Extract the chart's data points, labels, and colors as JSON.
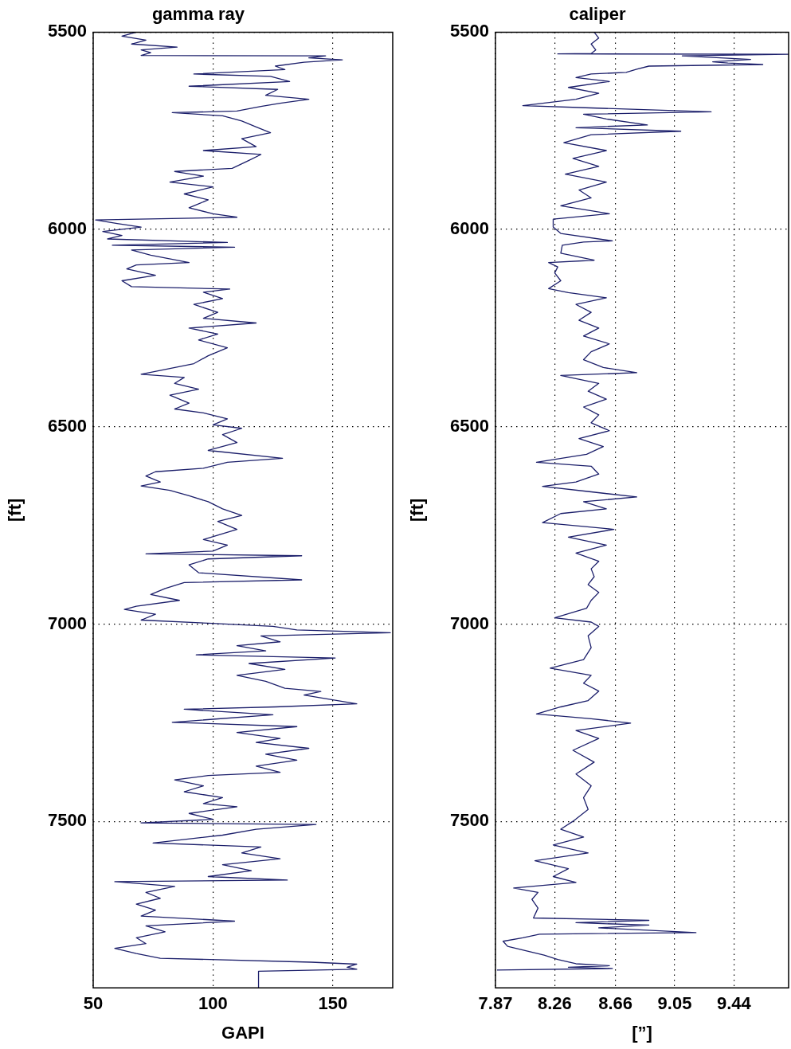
{
  "chart_data": [
    {
      "type": "line",
      "title": "gamma ray",
      "xlabel": "GAPI",
      "ylabel": "[ft]",
      "orientation": "horizontal",
      "grid": true,
      "xlim": [
        50,
        175
      ],
      "xticks": [
        50,
        100,
        150
      ],
      "ylim": [
        7922,
        5500
      ],
      "yticks": [
        5500,
        6000,
        6500,
        7000,
        7500
      ],
      "x": [
        5500,
        5510,
        5520,
        5530,
        5538,
        5545,
        5552,
        5559,
        5560,
        5565,
        5570,
        5576,
        5586,
        5595,
        5606,
        5612,
        5625,
        5637,
        5645,
        5660,
        5670,
        5680,
        5688,
        5700,
        5704,
        5712,
        5725,
        5740,
        5755,
        5770,
        5790,
        5800,
        5810,
        5825,
        5845,
        5853,
        5865,
        5880,
        5892,
        5910,
        5925,
        5945,
        5960,
        5969,
        5976,
        5985,
        5994,
        6005,
        6015,
        6024,
        6033,
        6040,
        6045,
        6052,
        6065,
        6084,
        6090,
        6100,
        6116,
        6130,
        6145,
        6151,
        6159,
        6175,
        6190,
        6210,
        6225,
        6237,
        6250,
        6265,
        6280,
        6300,
        6320,
        6340,
        6367,
        6375,
        6390,
        6405,
        6420,
        6440,
        6455,
        6465,
        6480,
        6495,
        6504,
        6520,
        6540,
        6560,
        6580,
        6590,
        6605,
        6614,
        6625,
        6640,
        6650,
        6661,
        6675,
        6690,
        6708,
        6725,
        6740,
        6760,
        6786,
        6800,
        6815,
        6822,
        6827,
        6835,
        6850,
        6870,
        6888,
        6895,
        6910,
        6925,
        6940,
        6955,
        6963,
        6975,
        6990,
        6998,
        7006,
        7015,
        7022,
        7030,
        7045,
        7055,
        7068,
        7078,
        7086,
        7100,
        7115,
        7130,
        7145,
        7163,
        7171,
        7180,
        7190,
        7202,
        7210,
        7216,
        7230,
        7249,
        7260,
        7275,
        7290,
        7300,
        7315,
        7330,
        7345,
        7360,
        7376,
        7384,
        7395,
        7410,
        7425,
        7440,
        7455,
        7463,
        7480,
        7495,
        7504,
        7508,
        7520,
        7535,
        7555,
        7565,
        7580,
        7595,
        7610,
        7625,
        7640,
        7649,
        7653,
        7665,
        7680,
        7695,
        7710,
        7725,
        7740,
        7753,
        7765,
        7780,
        7795,
        7810,
        7822,
        7835,
        7847,
        7857,
        7862,
        7870,
        7875,
        7880,
        7922
      ],
      "series": [
        {
          "color": "#1c1f6b",
          "values": [
            68,
            62,
            72,
            66,
            85,
            70,
            74,
            70,
            147,
            140,
            154,
            138,
            126,
            130,
            92,
            124,
            132,
            90,
            127,
            122,
            140,
            128,
            120,
            110,
            83,
            104,
            112,
            118,
            124,
            112,
            118,
            96,
            120,
            115,
            108,
            84,
            96,
            82,
            100,
            88,
            98,
            90,
            100,
            110,
            51,
            60,
            70,
            54,
            62,
            56,
            106,
            58,
            109,
            66,
            74,
            90,
            68,
            64,
            76,
            62,
            66,
            107,
            96,
            104,
            92,
            102,
            96,
            118,
            90,
            102,
            94,
            106,
            98,
            92,
            70,
            88,
            84,
            94,
            82,
            90,
            84,
            96,
            106,
            100,
            112,
            104,
            110,
            98,
            129,
            106,
            96,
            76,
            72,
            78,
            70,
            82,
            90,
            98,
            104,
            112,
            102,
            110,
            96,
            106,
            100,
            72,
            137,
            98,
            90,
            94,
            137,
            88,
            80,
            74,
            86,
            68,
            63,
            76,
            70,
            98,
            125,
            135,
            174,
            120,
            128,
            110,
            122,
            93,
            151,
            115,
            130,
            110,
            122,
            130,
            145,
            138,
            148,
            160,
            126,
            88,
            125,
            83,
            135,
            110,
            128,
            118,
            140,
            122,
            135,
            118,
            128,
            98,
            84,
            96,
            88,
            104,
            96,
            110,
            90,
            100,
            70,
            143,
            118,
            104,
            75,
            120,
            112,
            128,
            104,
            116,
            98,
            131,
            59,
            84,
            72,
            78,
            68,
            76,
            70,
            109,
            72,
            80,
            68,
            72,
            59,
            68,
            78,
            141,
            160,
            156,
            160,
            119,
            119
          ]
        }
      ]
    },
    {
      "type": "line",
      "title": "caliper",
      "xlabel": "[”]",
      "ylabel": "[ft]",
      "orientation": "horizontal",
      "grid": true,
      "xlim": [
        7.87,
        9.8
      ],
      "xticks": [
        7.87,
        8.26,
        8.66,
        9.05,
        9.44
      ],
      "ylim": [
        7922,
        5500
      ],
      "yticks": [
        5500,
        6000,
        6500,
        7000,
        7500
      ],
      "x": [
        5500,
        5515,
        5530,
        5545,
        5554,
        5555,
        5556,
        5560,
        5569,
        5575,
        5578,
        5582,
        5586,
        5594,
        5602,
        5606,
        5615,
        5625,
        5640,
        5655,
        5670,
        5686,
        5692,
        5702,
        5708,
        5720,
        5735,
        5742,
        5751,
        5760,
        5780,
        5800,
        5820,
        5840,
        5860,
        5880,
        5900,
        5920,
        5940,
        5960,
        5974,
        5994,
        6010,
        6029,
        6032,
        6040,
        6060,
        6078,
        6084,
        6095,
        6110,
        6130,
        6150,
        6160,
        6173,
        6190,
        6210,
        6230,
        6250,
        6270,
        6290,
        6310,
        6330,
        6350,
        6363,
        6370,
        6390,
        6410,
        6430,
        6450,
        6470,
        6490,
        6510,
        6530,
        6550,
        6570,
        6590,
        6600,
        6620,
        6640,
        6651,
        6665,
        6678,
        6690,
        6708,
        6720,
        6743,
        6760,
        6780,
        6800,
        6820,
        6841,
        6860,
        6880,
        6900,
        6920,
        6940,
        6960,
        6984,
        6995,
        7006,
        7030,
        7060,
        7090,
        7112,
        7130,
        7150,
        7170,
        7194,
        7210,
        7228,
        7240,
        7251,
        7270,
        7290,
        7320,
        7350,
        7380,
        7410,
        7440,
        7470,
        7500,
        7520,
        7540,
        7560,
        7580,
        7600,
        7620,
        7640,
        7655,
        7669,
        7680,
        7698,
        7720,
        7745,
        7751,
        7757,
        7763,
        7770,
        7782,
        7786,
        7795,
        7804,
        7817,
        7839,
        7850,
        7861,
        7866,
        7870,
        7873,
        7877
      ],
      "series": [
        {
          "color": "#1c1f6b",
          "values": [
            8.52,
            8.55,
            8.5,
            8.53,
            8.5,
            8.28,
            9.8,
            9.1,
            9.55,
            9.3,
            9.4,
            9.63,
            8.88,
            8.8,
            8.73,
            8.5,
            8.4,
            8.62,
            8.35,
            8.55,
            8.4,
            8.05,
            8.5,
            9.29,
            8.45,
            8.6,
            8.87,
            8.4,
            9.09,
            8.5,
            8.32,
            8.6,
            8.38,
            8.55,
            8.33,
            8.6,
            8.42,
            8.5,
            8.3,
            8.62,
            8.25,
            8.25,
            8.3,
            8.64,
            8.45,
            8.31,
            8.3,
            8.52,
            8.22,
            8.28,
            8.26,
            8.3,
            8.22,
            8.35,
            8.6,
            8.4,
            8.5,
            8.42,
            8.55,
            8.45,
            8.62,
            8.5,
            8.45,
            8.58,
            8.8,
            8.3,
            8.55,
            8.48,
            8.6,
            8.45,
            8.55,
            8.5,
            8.62,
            8.42,
            8.58,
            8.47,
            8.14,
            8.5,
            8.55,
            8.4,
            8.18,
            8.5,
            8.8,
            8.45,
            8.6,
            8.3,
            8.18,
            8.65,
            8.35,
            8.6,
            8.4,
            8.55,
            8.5,
            8.52,
            8.48,
            8.55,
            8.5,
            8.47,
            8.26,
            8.5,
            8.55,
            8.48,
            8.5,
            8.45,
            8.23,
            8.5,
            8.45,
            8.55,
            8.48,
            8.3,
            8.14,
            8.5,
            8.76,
            8.4,
            8.55,
            8.38,
            8.52,
            8.4,
            8.5,
            8.45,
            8.48,
            8.38,
            8.3,
            8.45,
            8.25,
            8.48,
            8.13,
            8.35,
            8.25,
            8.4,
            7.99,
            8.15,
            8.11,
            8.15,
            8.12,
            8.88,
            8.4,
            8.88,
            8.55,
            9.19,
            8.16,
            8.05,
            7.92,
            7.95,
            8.19,
            8.28,
            8.4,
            8.62,
            8.35,
            8.64,
            7.88
          ]
        }
      ]
    }
  ]
}
